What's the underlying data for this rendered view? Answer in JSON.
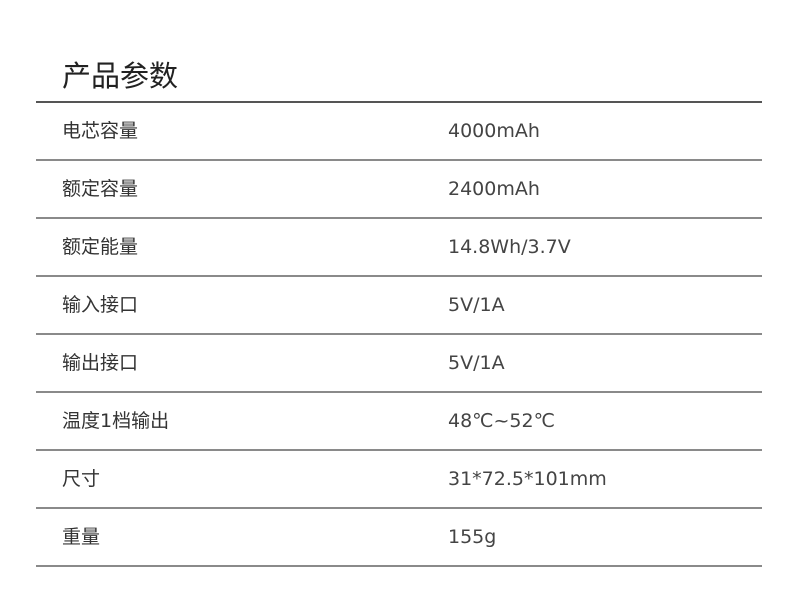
{
  "title": "产品参数",
  "rows": [
    {
      "label": "电芯容量",
      "value": "4000mAh"
    },
    {
      "label": "额定容量",
      "value": "2400mAh"
    },
    {
      "label": "额定能量",
      "value": "14.8Wh/3.7V"
    },
    {
      "label": "输入接口",
      "value": "5V/1A"
    },
    {
      "label": "输出接口",
      "value": "5V/1A"
    },
    {
      "label": "温度1档输出",
      "value": "48℃~52℃"
    },
    {
      "label": "尺寸",
      "value": "31*72.5*101mm"
    },
    {
      "label": "重量",
      "value": "155g"
    }
  ]
}
